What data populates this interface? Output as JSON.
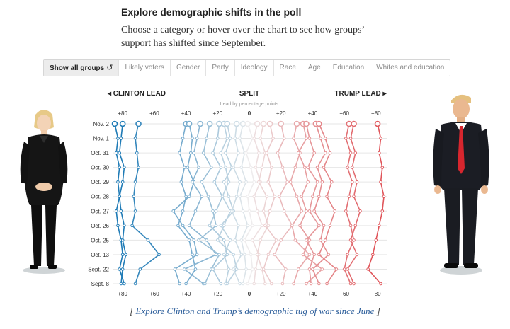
{
  "header": {
    "title": "Explore demographic shifts in the poll",
    "subtitle": "Choose a category or hover over the chart to see how groups’ support has shifted since September."
  },
  "filters": {
    "active": "Show all groups",
    "reset_icon": "reset-icon",
    "items": [
      "Show all groups",
      "Likely voters",
      "Gender",
      "Party",
      "Ideology",
      "Race",
      "Age",
      "Education",
      "Whites and education"
    ]
  },
  "footnote": {
    "bracket_open": "[",
    "link_text": "Explore Clinton and Trump’s demographic tug of war since June",
    "bracket_close": "]"
  },
  "chart_data": {
    "type": "line",
    "left_label": "CLINTON LEAD",
    "center_label": "SPLIT",
    "right_label": "TRUMP LEAD",
    "axis_caption": "Lead by percentage points",
    "x_ticks": [
      -80,
      -60,
      -40,
      -20,
      0,
      20,
      40,
      60,
      80
    ],
    "x_tick_labels": [
      "+80",
      "+60",
      "+40",
      "+20",
      "0",
      "+20",
      "+40",
      "+60",
      "+80"
    ],
    "xlim": [
      -85,
      85
    ],
    "dates": [
      "Nov. 2",
      "Nov. 1",
      "Oct. 31",
      "Oct. 30",
      "Oct. 29",
      "Oct. 28",
      "Oct. 27",
      "Oct. 26",
      "Oct. 25",
      "Oct. 13",
      "Sept. 22",
      "Sept. 8"
    ],
    "colors": {
      "clinton": "#1f7bb6",
      "trump": "#e0555a",
      "neutral": "#eeeeee"
    },
    "series": [
      {
        "values": [
          -85,
          -83,
          -84,
          -82,
          -83,
          -82,
          -84,
          -83,
          -81,
          -80,
          -82,
          -79
        ]
      },
      {
        "values": [
          -80,
          -81,
          -82,
          -79,
          -80,
          -82,
          -81,
          -79,
          -80,
          -78,
          -80,
          -81
        ]
      },
      {
        "values": [
          -70,
          -72,
          -71,
          -70,
          -72,
          -73,
          -72,
          -74,
          -64,
          -57,
          -69,
          -72
        ]
      },
      {
        "values": [
          -40,
          -42,
          -44,
          -41,
          -43,
          -40,
          -42,
          -45,
          -38,
          -36,
          -34,
          -40
        ]
      },
      {
        "values": [
          -38,
          -36,
          -37,
          -39,
          -35,
          -38,
          -48,
          -42,
          -35,
          -33,
          -47,
          -44
        ]
      },
      {
        "values": [
          -31,
          -33,
          -35,
          -32,
          -36,
          -30,
          -34,
          -38,
          -27,
          -21,
          -41,
          -29
        ]
      },
      {
        "values": [
          -25,
          -27,
          -29,
          -24,
          -30,
          -26,
          -23,
          -21,
          -32,
          -19,
          -24,
          -28
        ]
      },
      {
        "values": [
          -19,
          -20,
          -23,
          -18,
          -22,
          -17,
          -21,
          -25,
          -16,
          -14,
          -23,
          -18
        ]
      },
      {
        "values": [
          -16,
          -14,
          -18,
          -15,
          -13,
          -17,
          -12,
          -16,
          -20,
          -10,
          -8,
          -14
        ]
      },
      {
        "values": [
          -14,
          -12,
          -15,
          -11,
          -16,
          -13,
          -10,
          -18,
          -12,
          -16,
          -13,
          -15
        ]
      },
      {
        "values": [
          -8,
          -9,
          -7,
          -10,
          -6,
          -8,
          -11,
          -7,
          -9,
          -5,
          -10,
          -6
        ]
      },
      {
        "values": [
          -4,
          -6,
          -3,
          -5,
          -2,
          -6,
          -4,
          -1,
          -5,
          -3,
          -2,
          -4
        ]
      },
      {
        "values": [
          -1,
          2,
          -2,
          1,
          3,
          -1,
          0,
          2,
          -3,
          1,
          2,
          -1
        ]
      },
      {
        "values": [
          5,
          3,
          6,
          4,
          7,
          3,
          5,
          8,
          2,
          6,
          4,
          3
        ]
      },
      {
        "values": [
          9,
          7,
          10,
          8,
          6,
          11,
          9,
          12,
          7,
          5,
          8,
          10
        ]
      },
      {
        "values": [
          13,
          15,
          11,
          14,
          12,
          16,
          13,
          10,
          17,
          12,
          9,
          14
        ]
      },
      {
        "values": [
          20,
          22,
          18,
          21,
          24,
          19,
          22,
          27,
          20,
          16,
          23,
          21
        ]
      },
      {
        "values": [
          30,
          28,
          32,
          29,
          26,
          30,
          33,
          27,
          29,
          38,
          31,
          28
        ]
      },
      {
        "values": [
          34,
          36,
          31,
          35,
          37,
          33,
          36,
          32,
          38,
          34,
          46,
          36
        ]
      },
      {
        "values": [
          36,
          38,
          41,
          37,
          43,
          40,
          38,
          44,
          36,
          41,
          38,
          39
        ]
      },
      {
        "values": [
          42,
          45,
          48,
          43,
          46,
          44,
          41,
          47,
          45,
          50,
          40,
          44
        ]
      },
      {
        "values": [
          44,
          48,
          51,
          47,
          52,
          49,
          54,
          51,
          48,
          44,
          55,
          49
        ]
      },
      {
        "values": [
          63,
          61,
          64,
          62,
          65,
          63,
          61,
          64,
          66,
          62,
          60,
          64
        ]
      },
      {
        "values": [
          66,
          64,
          67,
          65,
          68,
          66,
          70,
          67,
          64,
          68,
          62,
          66
        ]
      },
      {
        "values": [
          81,
          83,
          82,
          84,
          83,
          85,
          84,
          82,
          80,
          78,
          75,
          83
        ]
      }
    ]
  }
}
